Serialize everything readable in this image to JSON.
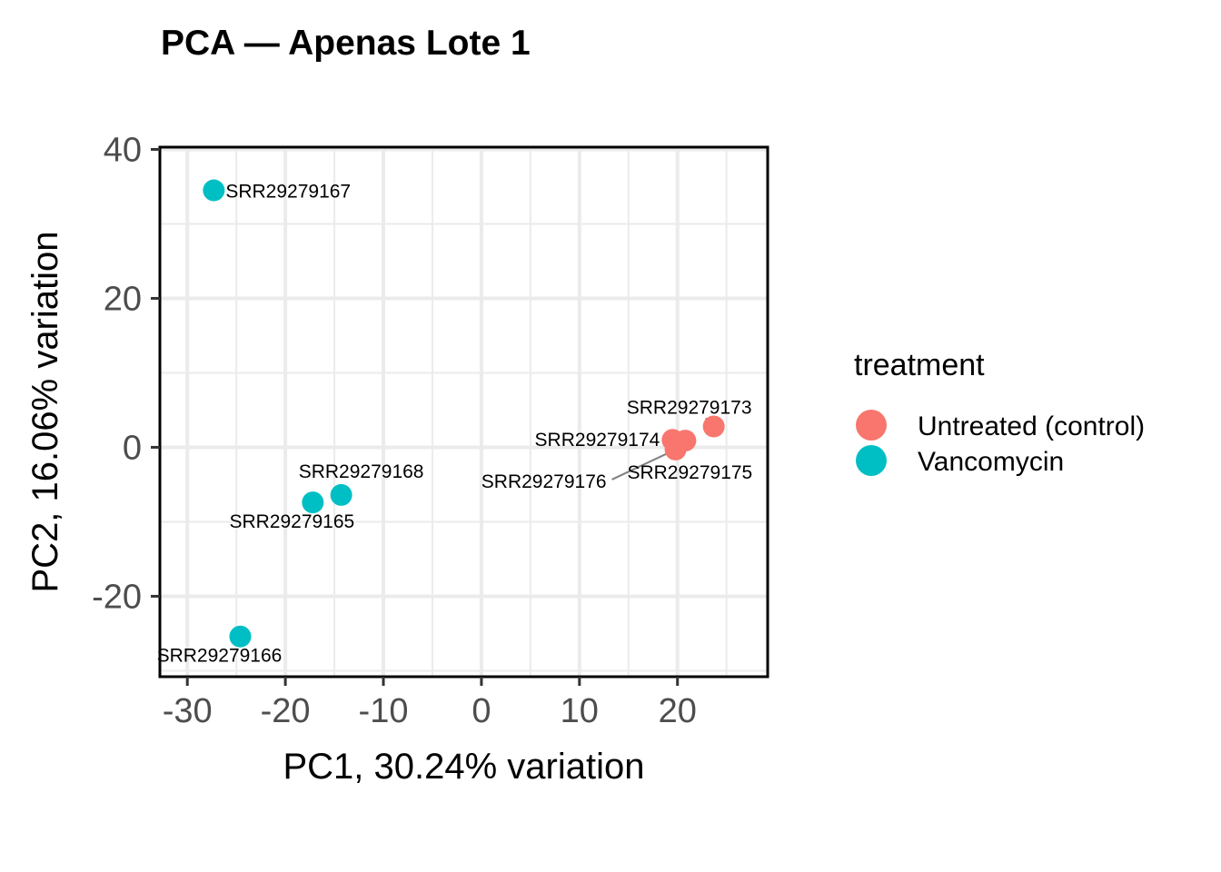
{
  "chart_data": {
    "type": "scatter",
    "title": "PCA — Apenas Lote 1",
    "xlabel": "PC1, 30.24% variation",
    "ylabel": "PC2, 16.06% variation",
    "xlim": [
      -32.8,
      29.2
    ],
    "ylim": [
      -30.8,
      40.3
    ],
    "xticks": [
      -30,
      -20,
      -10,
      0,
      10,
      20
    ],
    "xtick_labels": [
      "-30",
      "-20",
      "-10",
      "0",
      "10",
      "20"
    ],
    "yticks": [
      -20,
      0,
      20,
      40
    ],
    "ytick_labels": [
      "-20",
      "0",
      "20",
      "40"
    ],
    "grid": true,
    "legend": {
      "title": "treatment",
      "placement": "right",
      "entries": [
        {
          "label": "Untreated (control)",
          "color": "#F8766D"
        },
        {
          "label": "Vancomycin",
          "color": "#00BFC4"
        }
      ]
    },
    "points": [
      {
        "label": "SRR29279167",
        "x": -27.3,
        "y": 34.5,
        "group": "Vancomycin",
        "label_pos": "right"
      },
      {
        "label": "SRR29279168",
        "x": -14.3,
        "y": -6.4,
        "group": "Vancomycin",
        "label_pos": "above-right"
      },
      {
        "label": "SRR29279165",
        "x": -17.2,
        "y": -7.4,
        "group": "Vancomycin",
        "label_pos": "below-left"
      },
      {
        "label": "SRR29279166",
        "x": -24.6,
        "y": -25.4,
        "group": "Vancomycin",
        "label_pos": "below-left"
      },
      {
        "label": "SRR29279173",
        "x": 23.7,
        "y": 2.8,
        "group": "Untreated (control)",
        "label_pos": "above-left"
      },
      {
        "label": "SRR29279174",
        "x": 19.5,
        "y": 1.0,
        "group": "Untreated (control)",
        "label_pos": "left"
      },
      {
        "label": "SRR29279175",
        "x": 20.8,
        "y": 0.9,
        "group": "Untreated (control)",
        "label_pos": "below"
      },
      {
        "label": "SRR29279176",
        "x": 19.8,
        "y": -0.3,
        "group": "Untreated (control)",
        "label_pos": "far-left-below"
      }
    ]
  }
}
